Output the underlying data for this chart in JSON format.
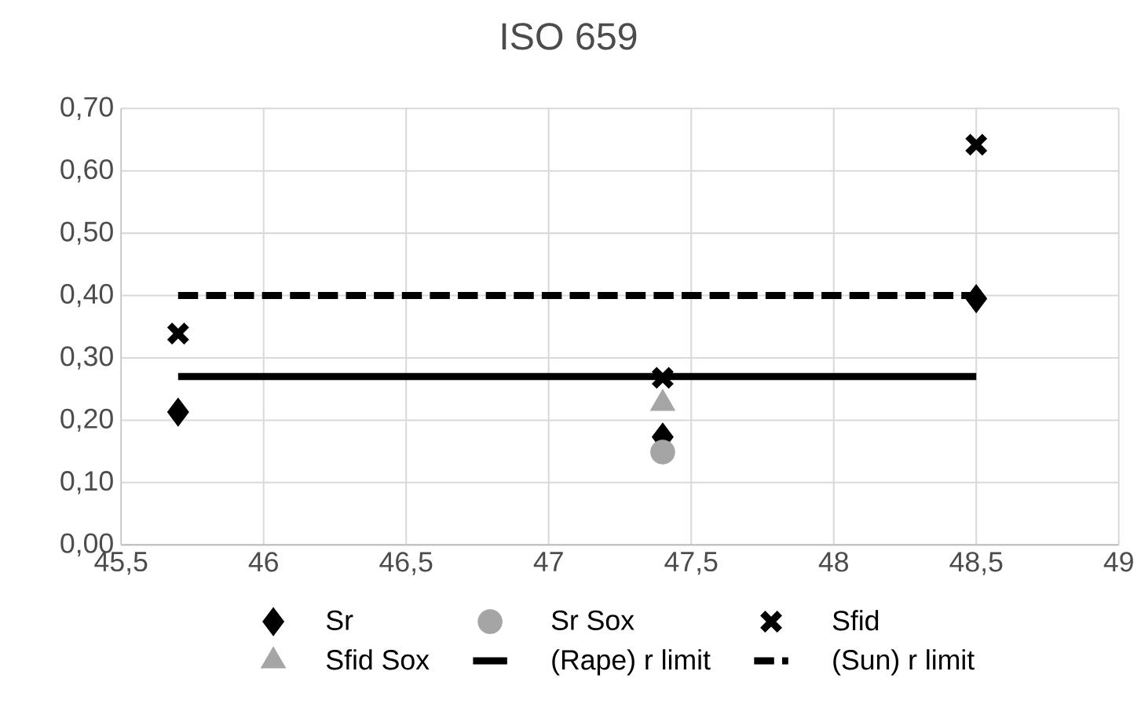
{
  "chart_data": {
    "type": "scatter",
    "title": "ISO 659",
    "xlim": [
      45.5,
      49
    ],
    "xticks": [
      {
        "value": 45.5,
        "label": "45,5"
      },
      46,
      {
        "value": 46.5,
        "label": "46,5"
      },
      47,
      {
        "value": 47.5,
        "label": "47,5"
      },
      48,
      {
        "value": 48.5,
        "label": "48,5"
      },
      49
    ],
    "ylim": [
      0,
      0.7
    ],
    "yticks": [
      {
        "value": 0,
        "label": "0,00"
      },
      {
        "value": 0.1,
        "label": "0,10"
      },
      {
        "value": 0.2,
        "label": "0,20"
      },
      {
        "value": 0.3,
        "label": "0,30"
      },
      {
        "value": 0.4,
        "label": "0,40"
      },
      {
        "value": 0.5,
        "label": "0,50"
      },
      {
        "value": 0.6,
        "label": "0,60"
      },
      {
        "value": 0.7,
        "label": "0,70"
      }
    ],
    "grid": true,
    "legend": "bottom",
    "series": [
      {
        "name": "Sr",
        "color": "#000000",
        "marker": "diamond",
        "x": [
          45.7,
          47.4,
          48.5
        ],
        "values": [
          0.213,
          0.173,
          0.395
        ]
      },
      {
        "name": "Sr Sox",
        "color": "#a5a5a5",
        "marker": "circle",
        "x": [
          47.4
        ],
        "values": [
          0.149
        ]
      },
      {
        "name": "Sfid",
        "color": "#000000",
        "marker": "cross",
        "x": [
          45.7,
          47.4,
          48.5
        ],
        "values": [
          0.339,
          0.268,
          0.642
        ]
      },
      {
        "name": "Sfid Sox",
        "color": "#a5a5a5",
        "marker": "triangle",
        "x": [
          47.4
        ],
        "values": [
          0.227
        ]
      },
      {
        "name": "(Rape) r limit",
        "color": "#000000",
        "type": "line",
        "marker": "none",
        "line_style": "solid",
        "x": [
          45.7,
          48.5
        ],
        "values": [
          0.27,
          0.27
        ]
      },
      {
        "name": "(Sun) r limit",
        "color": "#000000",
        "type": "line",
        "marker": "none",
        "line_style": "dashed",
        "x": [
          45.7,
          48.5
        ],
        "values": [
          0.4,
          0.4
        ]
      }
    ]
  }
}
